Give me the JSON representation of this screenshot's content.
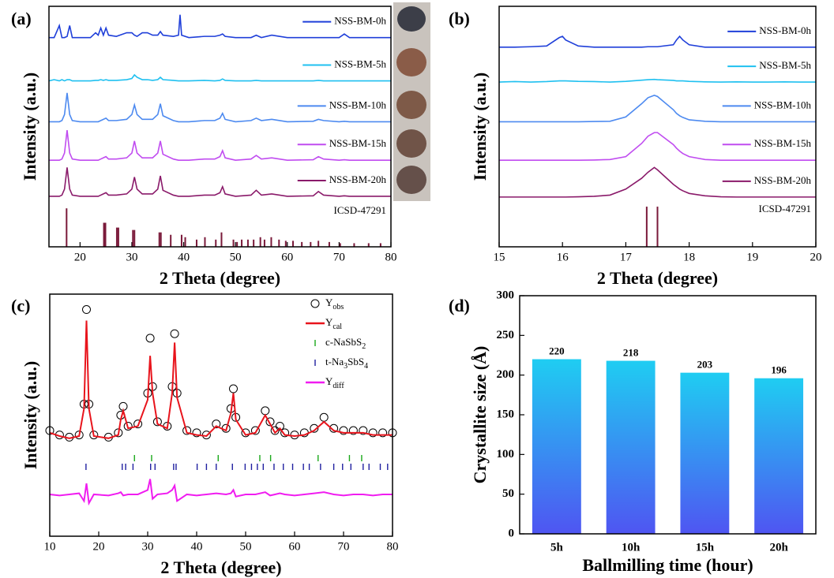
{
  "chart_data": [
    {
      "type": "line",
      "panel_label": "(a)",
      "xlabel": "2 Theta (degree)",
      "ylabel": "Intensity (a.u.)",
      "xlim": [
        14,
        80
      ],
      "xticks": [
        20,
        30,
        40,
        50,
        60,
        70,
        80
      ],
      "ylim": [
        0,
        10
      ],
      "x": [
        14,
        15,
        16,
        16.5,
        17,
        17.5,
        18,
        18.5,
        20,
        22,
        23,
        23.5,
        24,
        24.5,
        25,
        25.5,
        27,
        29,
        30,
        30.5,
        31,
        32,
        33,
        34,
        35,
        35.5,
        36,
        38,
        39,
        39.3,
        39.6,
        41,
        44,
        46,
        47,
        47.5,
        48,
        50,
        53,
        54,
        55,
        57,
        60,
        65,
        66,
        67,
        70,
        71,
        72,
        75,
        80
      ],
      "series": [
        {
          "name": "NSS-BM-0h",
          "color": "#1f3fd9",
          "values": [
            8.7,
            8.7,
            9.2,
            8.7,
            8.7,
            8.75,
            9.2,
            8.7,
            8.7,
            8.7,
            8.9,
            8.8,
            9.1,
            8.8,
            9.1,
            8.8,
            8.75,
            8.9,
            8.9,
            8.8,
            8.75,
            8.9,
            8.9,
            8.8,
            8.8,
            8.95,
            8.8,
            8.75,
            8.8,
            9.65,
            8.8,
            8.7,
            8.75,
            8.75,
            8.8,
            8.85,
            8.75,
            8.7,
            8.7,
            8.8,
            8.7,
            8.8,
            8.7,
            8.7,
            8.7,
            8.7,
            8.7,
            8.85,
            8.7,
            8.7,
            8.7
          ]
        },
        {
          "name": "NSS-BM-5h",
          "color": "#1fc0f0",
          "values": [
            6.9,
            6.95,
            6.9,
            6.95,
            6.9,
            6.95,
            6.95,
            6.9,
            6.9,
            6.9,
            6.92,
            6.92,
            6.95,
            6.92,
            6.95,
            6.92,
            6.92,
            6.95,
            7.0,
            7.15,
            7.05,
            6.95,
            6.95,
            6.92,
            6.95,
            7.05,
            6.95,
            6.92,
            6.9,
            6.9,
            6.9,
            6.9,
            6.92,
            6.9,
            6.92,
            6.98,
            6.92,
            6.9,
            6.9,
            6.92,
            6.9,
            6.9,
            6.9,
            6.9,
            6.92,
            6.9,
            6.9,
            6.9,
            6.9,
            6.9,
            6.9
          ]
        },
        {
          "name": "NSS-BM-10h",
          "color": "#4d8af0",
          "values": [
            5.2,
            5.2,
            5.2,
            5.25,
            5.5,
            6.4,
            5.5,
            5.25,
            5.2,
            5.2,
            5.2,
            5.2,
            5.25,
            5.3,
            5.35,
            5.25,
            5.25,
            5.3,
            5.5,
            5.9,
            5.5,
            5.3,
            5.3,
            5.3,
            5.5,
            5.95,
            5.45,
            5.25,
            5.2,
            5.2,
            5.2,
            5.2,
            5.25,
            5.25,
            5.35,
            5.55,
            5.3,
            5.2,
            5.25,
            5.35,
            5.25,
            5.3,
            5.2,
            5.22,
            5.3,
            5.25,
            5.2,
            5.22,
            5.2,
            5.2,
            5.2
          ]
        },
        {
          "name": "NSS-BM-15h",
          "color": "#c04cf0",
          "values": [
            3.6,
            3.6,
            3.6,
            3.65,
            3.9,
            4.85,
            3.9,
            3.65,
            3.6,
            3.6,
            3.6,
            3.6,
            3.65,
            3.7,
            3.75,
            3.65,
            3.65,
            3.7,
            3.9,
            4.4,
            3.9,
            3.7,
            3.7,
            3.7,
            3.9,
            4.4,
            3.85,
            3.65,
            3.6,
            3.6,
            3.6,
            3.6,
            3.65,
            3.65,
            3.75,
            4.0,
            3.7,
            3.6,
            3.65,
            3.8,
            3.65,
            3.7,
            3.6,
            3.62,
            3.75,
            3.65,
            3.6,
            3.62,
            3.6,
            3.6,
            3.6
          ]
        },
        {
          "name": "NSS-BM-20h",
          "color": "#8a1a6a",
          "values": [
            2.1,
            2.1,
            2.1,
            2.15,
            2.4,
            3.3,
            2.4,
            2.15,
            2.1,
            2.1,
            2.1,
            2.1,
            2.15,
            2.2,
            2.25,
            2.15,
            2.15,
            2.2,
            2.4,
            2.9,
            2.4,
            2.2,
            2.2,
            2.2,
            2.4,
            2.95,
            2.35,
            2.15,
            2.1,
            2.1,
            2.1,
            2.1,
            2.15,
            2.15,
            2.25,
            2.5,
            2.2,
            2.1,
            2.15,
            2.35,
            2.15,
            2.2,
            2.1,
            2.12,
            2.3,
            2.15,
            2.1,
            2.12,
            2.1,
            2.1,
            2.1
          ]
        }
      ],
      "reference": {
        "name": "ICSD-47291",
        "color": "#7a1a3a",
        "x": [
          17.4,
          24.6,
          24.9,
          27.1,
          27.4,
          30.2,
          30.5,
          35.3,
          35.6,
          37.5,
          39.6,
          40.3,
          42.5,
          44.1,
          46.2,
          47.3,
          49.6,
          50.3,
          51.2,
          52.4,
          53.5,
          54.8,
          55.6,
          56.9,
          58.4,
          59.7,
          61.1,
          62.8,
          64.5,
          66.0,
          68.1,
          70.2,
          72.9,
          75.7,
          78.0
        ],
        "values": [
          1.6,
          1.0,
          1.0,
          0.8,
          0.8,
          0.7,
          0.7,
          0.6,
          0.6,
          0.5,
          0.5,
          0.4,
          0.3,
          0.4,
          0.3,
          0.6,
          0.3,
          0.2,
          0.3,
          0.3,
          0.3,
          0.4,
          0.3,
          0.4,
          0.3,
          0.25,
          0.25,
          0.2,
          0.2,
          0.25,
          0.2,
          0.15,
          0.15,
          0.15,
          0.15
        ]
      }
    },
    {
      "type": "line",
      "panel_label": "(b)",
      "xlabel": "2 Theta (degree)",
      "ylabel": "Intensity (a.u.)",
      "xlim": [
        15,
        20
      ],
      "xticks": [
        15,
        16,
        17,
        18,
        19,
        20
      ],
      "ylim": [
        0,
        10
      ],
      "x": [
        15,
        15.25,
        15.5,
        15.75,
        15.95,
        16,
        16.05,
        16.25,
        16.5,
        16.75,
        17,
        17.25,
        17.35,
        17.45,
        17.5,
        17.75,
        17.8,
        17.85,
        17.9,
        18,
        18.25,
        18.5,
        18.75,
        19,
        19.25,
        19.5,
        19.75,
        20
      ],
      "series": [
        {
          "name": "NSS-BM-0h",
          "color": "#1f3fd9",
          "values": [
            8.3,
            8.3,
            8.32,
            8.35,
            8.7,
            8.75,
            8.6,
            8.35,
            8.3,
            8.3,
            8.3,
            8.3,
            8.32,
            8.32,
            8.32,
            8.4,
            8.6,
            8.75,
            8.6,
            8.4,
            8.3,
            8.3,
            8.3,
            8.3,
            8.3,
            8.3,
            8.3,
            8.3
          ]
        },
        {
          "name": "NSS-BM-5h",
          "color": "#1fc0f0",
          "values": [
            6.85,
            6.87,
            6.85,
            6.87,
            6.9,
            6.9,
            6.9,
            6.88,
            6.87,
            6.85,
            6.88,
            6.93,
            6.95,
            6.96,
            6.95,
            6.92,
            6.9,
            6.9,
            6.9,
            6.88,
            6.86,
            6.85,
            6.86,
            6.85,
            6.85,
            6.86,
            6.85,
            6.85
          ]
        },
        {
          "name": "NSS-BM-10h",
          "color": "#4d8af0",
          "values": [
            5.2,
            5.2,
            5.2,
            5.2,
            5.2,
            5.2,
            5.2,
            5.2,
            5.21,
            5.22,
            5.4,
            5.95,
            6.2,
            6.3,
            6.25,
            5.7,
            5.55,
            5.45,
            5.38,
            5.28,
            5.22,
            5.2,
            5.2,
            5.2,
            5.2,
            5.2,
            5.2,
            5.2
          ]
        },
        {
          "name": "NSS-BM-15h",
          "color": "#c04cf0",
          "values": [
            3.6,
            3.6,
            3.6,
            3.6,
            3.6,
            3.6,
            3.6,
            3.6,
            3.61,
            3.63,
            3.75,
            4.3,
            4.6,
            4.75,
            4.75,
            4.25,
            4.1,
            3.98,
            3.88,
            3.75,
            3.63,
            3.6,
            3.6,
            3.6,
            3.6,
            3.6,
            3.6,
            3.6
          ]
        },
        {
          "name": "NSS-BM-20h",
          "color": "#8a1a6a",
          "values": [
            2.07,
            2.07,
            2.07,
            2.07,
            2.07,
            2.07,
            2.07,
            2.08,
            2.1,
            2.15,
            2.4,
            2.85,
            3.1,
            3.3,
            3.2,
            2.6,
            2.5,
            2.4,
            2.33,
            2.22,
            2.12,
            2.08,
            2.07,
            2.07,
            2.07,
            2.07,
            2.07,
            2.07
          ]
        }
      ],
      "reference": {
        "name": "ICSD-47291",
        "color": "#7a1a3a",
        "x": [
          17.33,
          17.5
        ],
        "values": [
          1.67,
          1.67
        ]
      }
    },
    {
      "type": "line",
      "panel_label": "(c)",
      "xlabel": "2 Theta (degree)",
      "ylabel": "Intensity (a.u.)",
      "xlim": [
        10,
        80
      ],
      "xticks": [
        10,
        20,
        30,
        40,
        50,
        60,
        70,
        80
      ],
      "ylim": [
        0,
        11
      ],
      "x": [
        10,
        12,
        14,
        16,
        17,
        17.5,
        18,
        19,
        22,
        24,
        24.5,
        25,
        26,
        28,
        30,
        30.5,
        31,
        32,
        34,
        35,
        35.5,
        36,
        38,
        40,
        42,
        44,
        46,
        47,
        47.5,
        48,
        50,
        52,
        54,
        55,
        56,
        57,
        58,
        60,
        62,
        64,
        66,
        68,
        70,
        72,
        74,
        76,
        78,
        80
      ],
      "series": [
        {
          "label_parts": [
            {
              "text": "Y"
            },
            {
              "text": "obs",
              "sub": true
            }
          ],
          "color": "#000000",
          "marker": "circle",
          "values": [
            4.8,
            4.6,
            4.5,
            4.6,
            6.0,
            10.3,
            6.0,
            4.6,
            4.5,
            4.7,
            5.5,
            5.9,
            5.0,
            5.1,
            6.5,
            9.0,
            6.8,
            5.2,
            5.0,
            6.8,
            9.2,
            6.5,
            4.8,
            4.7,
            4.6,
            5.1,
            4.9,
            5.8,
            6.7,
            5.4,
            4.7,
            4.8,
            5.7,
            5.2,
            4.8,
            5.0,
            4.7,
            4.6,
            4.7,
            4.9,
            5.4,
            4.9,
            4.8,
            4.8,
            4.8,
            4.7,
            4.7,
            4.7
          ]
        },
        {
          "label_parts": [
            {
              "text": "Y"
            },
            {
              "text": "cal",
              "sub": true
            }
          ],
          "color": "#e8141c",
          "values": [
            4.7,
            4.55,
            4.45,
            4.55,
            5.8,
            9.8,
            5.8,
            4.55,
            4.45,
            4.6,
            5.3,
            5.7,
            4.9,
            5.0,
            6.2,
            8.2,
            6.5,
            5.1,
            4.9,
            6.5,
            8.8,
            6.3,
            4.7,
            4.6,
            4.55,
            5.0,
            4.8,
            5.6,
            6.5,
            5.3,
            4.6,
            4.7,
            5.5,
            5.1,
            4.7,
            4.9,
            4.6,
            4.55,
            4.6,
            4.8,
            5.2,
            4.8,
            4.7,
            4.7,
            4.7,
            4.6,
            4.6,
            4.6
          ]
        },
        {
          "label_parts": [
            {
              "text": "Y"
            },
            {
              "text": "diff",
              "sub": true
            }
          ],
          "color": "#f01cf0",
          "values": [
            1.9,
            1.85,
            1.9,
            1.95,
            1.6,
            2.4,
            1.5,
            1.9,
            1.85,
            1.95,
            2.0,
            1.85,
            1.9,
            1.9,
            2.1,
            2.6,
            1.7,
            1.9,
            1.95,
            2.1,
            2.3,
            1.6,
            1.9,
            1.85,
            1.9,
            1.95,
            1.9,
            1.95,
            2.1,
            1.8,
            1.9,
            1.9,
            2.0,
            1.85,
            1.9,
            1.95,
            1.9,
            1.85,
            1.9,
            1.95,
            2.0,
            1.9,
            1.85,
            1.9,
            1.9,
            1.85,
            1.9,
            1.9
          ]
        }
      ],
      "reflections": [
        {
          "label_parts": [
            {
              "text": "c-NaSbS"
            },
            {
              "text": "2",
              "sub": true
            }
          ],
          "color": "#1aa81a",
          "x": [
            27.3,
            30.8,
            44.4,
            52.9,
            55.1,
            64.8,
            71.2,
            73.7
          ]
        },
        {
          "label_parts": [
            {
              "text": "t-Na"
            },
            {
              "text": "3",
              "sub": true
            },
            {
              "text": "SbS"
            },
            {
              "text": "4",
              "sub": true
            }
          ],
          "color": "#2020a0",
          "x": [
            17.4,
            24.8,
            25.5,
            27.0,
            30.6,
            31.5,
            35.3,
            35.8,
            40.1,
            42.0,
            44.0,
            47.3,
            49.9,
            51.2,
            52.4,
            53.6,
            55.8,
            57.7,
            59.6,
            61.8,
            63.0,
            65.3,
            68.0,
            69.8,
            71.5,
            74.0,
            75.2,
            77.5,
            79.0
          ]
        }
      ]
    },
    {
      "type": "bar",
      "panel_label": "(d)",
      "xlabel": "Ballmilling time (hour)",
      "ylabel": "Crystallite size (Å)",
      "categories": [
        "5h",
        "10h",
        "15h",
        "20h"
      ],
      "values": [
        220,
        218,
        203,
        196
      ],
      "ylim": [
        0,
        300
      ],
      "yticks": [
        0,
        50,
        100,
        150,
        200,
        250,
        300
      ],
      "gradient": [
        "#1fcdf2",
        "#4f55f2"
      ]
    }
  ]
}
